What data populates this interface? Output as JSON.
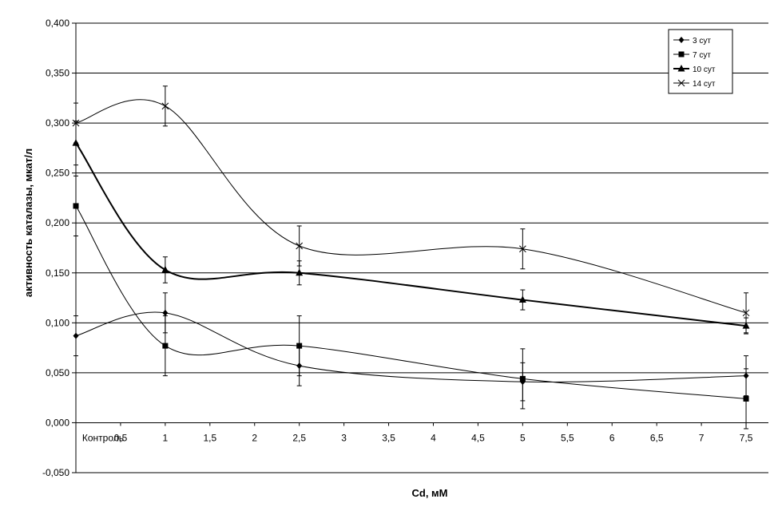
{
  "chart_data": {
    "type": "line",
    "xlabel": "Cd, мМ",
    "ylabel": "активность каталазы, мкат/л",
    "ylim": [
      -0.05,
      0.4
    ],
    "xlim": [
      0,
      7.75
    ],
    "y_ticks": [
      "-0,050",
      "0,000",
      "0,050",
      "0,100",
      "0,150",
      "0,200",
      "0,250",
      "0,300",
      "0,350",
      "0,400"
    ],
    "y_tick_values": [
      -0.05,
      0,
      0.05,
      0.1,
      0.15,
      0.2,
      0.25,
      0.3,
      0.35,
      0.4
    ],
    "x_ticks": [
      "Контроль",
      "0,5",
      "1",
      "1,5",
      "2",
      "2,5",
      "3",
      "3,5",
      "4",
      "4,5",
      "5",
      "5,5",
      "6",
      "6,5",
      "7",
      "7,5"
    ],
    "x_tick_values": [
      0,
      0.5,
      1,
      1.5,
      2,
      2.5,
      3,
      3.5,
      4,
      4.5,
      5,
      5.5,
      6,
      6.5,
      7,
      7.5
    ],
    "grid": "horizontal",
    "legend_position": "top-right",
    "series": [
      {
        "name": "3 сут",
        "marker": "diamond",
        "line_width": 1,
        "x": [
          0,
          1,
          2.5,
          5,
          7.5
        ],
        "y": [
          0.087,
          0.11,
          0.057,
          0.041,
          0.047
        ],
        "error": [
          0.02,
          0.02,
          0.02,
          0.019,
          0.02
        ]
      },
      {
        "name": "7 сут",
        "marker": "square",
        "line_width": 1,
        "x": [
          0,
          1,
          2.5,
          5,
          7.5
        ],
        "y": [
          0.217,
          0.077,
          0.077,
          0.044,
          0.024
        ],
        "error": [
          0.03,
          0.03,
          0.03,
          0.03,
          0.03
        ]
      },
      {
        "name": "10 сут",
        "marker": "triangle",
        "line_width": 2,
        "x": [
          0,
          1,
          2.5,
          5,
          7.5
        ],
        "y": [
          0.28,
          0.153,
          0.15,
          0.123,
          0.097
        ],
        "error": [
          0.022,
          0.013,
          0.012,
          0.01,
          0.008
        ]
      },
      {
        "name": "14 сут",
        "marker": "x",
        "line_width": 1,
        "x": [
          0,
          1,
          2.5,
          5,
          7.5
        ],
        "y": [
          0.3,
          0.317,
          0.177,
          0.174,
          0.11
        ],
        "error": [
          0.02,
          0.02,
          0.02,
          0.02,
          0.02
        ]
      }
    ]
  }
}
